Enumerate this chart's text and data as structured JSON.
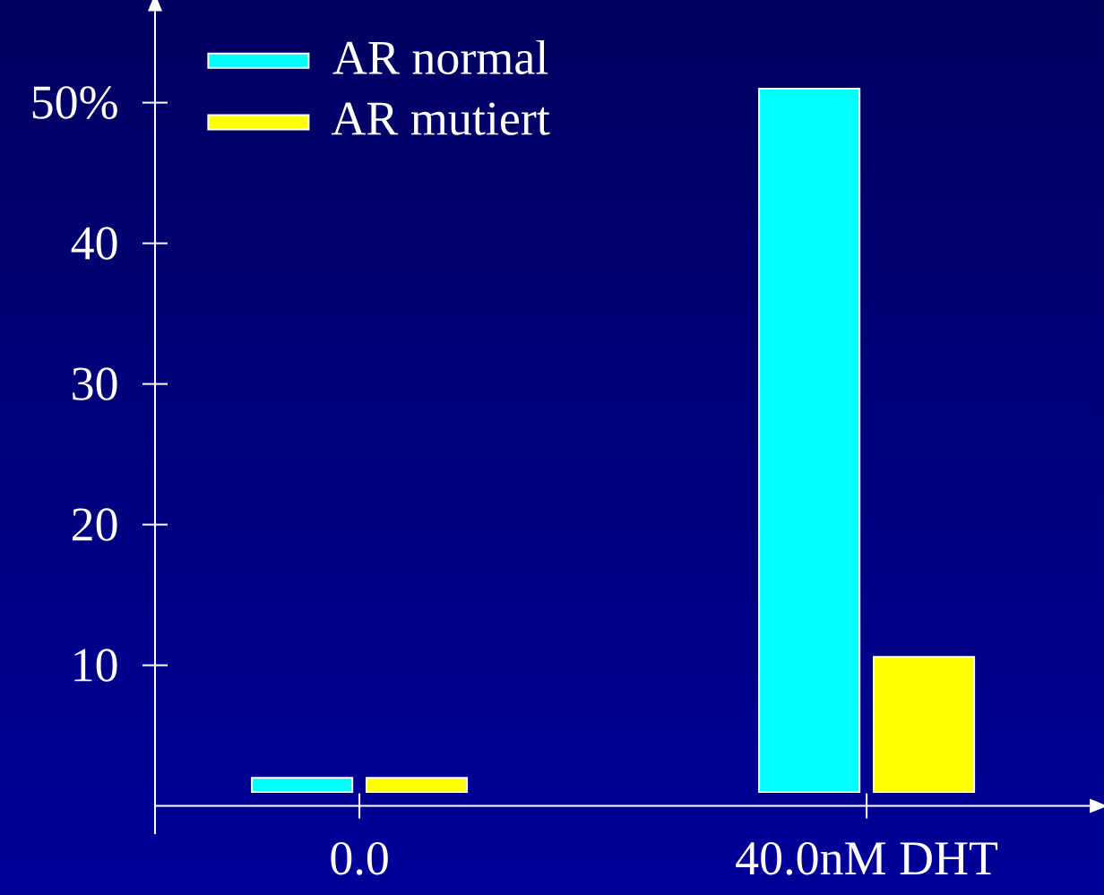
{
  "chart_data": {
    "type": "bar",
    "categories": [
      "0.0",
      "40.0nM DHT"
    ],
    "series": [
      {
        "name": "AR normal",
        "color": "#00ffff",
        "values": [
          1,
          50
        ],
        "base": [
          1,
          1
        ]
      },
      {
        "name": "AR mutiert",
        "color": "#ffff00",
        "values": [
          1,
          9.6
        ],
        "base": [
          1,
          1
        ]
      }
    ],
    "ylim": [
      -2,
      56.5
    ],
    "yticks": [
      10,
      20,
      30,
      40,
      {
        "value": 50,
        "label": "50%"
      }
    ],
    "legend": "top left"
  }
}
